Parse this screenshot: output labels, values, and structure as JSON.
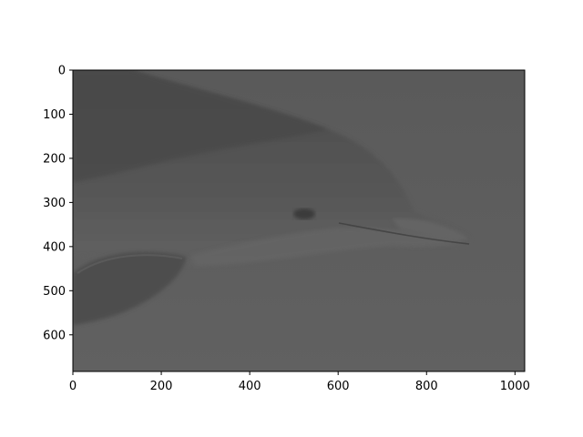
{
  "image": {
    "subject": "dolphin-underwater-grayscale",
    "colormap": "gray",
    "colors": {
      "water": "#5c5c5c",
      "body_dark": "#4a4a4a",
      "body_mid": "#595959",
      "belly_light": "#676767",
      "axes_frame": "#000000",
      "background": "#ffffff"
    }
  },
  "axes": {
    "x": {
      "ticks": [
        0,
        200,
        400,
        600,
        800,
        1000
      ],
      "lim": [
        0,
        1022
      ]
    },
    "y": {
      "ticks": [
        0,
        100,
        200,
        300,
        400,
        500,
        600
      ],
      "lim": [
        683,
        0
      ],
      "inverted": true
    }
  }
}
